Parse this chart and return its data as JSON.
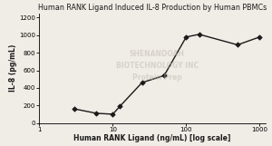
{
  "title": "Human RANK Ligand Induced IL-8 Production by Human PBMCs",
  "xlabel": "Human RANK Ligand (ng/mL) [log scale]",
  "ylabel": "IL-8 (pg/mL)",
  "x_data": [
    3,
    6,
    10,
    12.5,
    25,
    50,
    100,
    150,
    500,
    1000
  ],
  "y_data": [
    160,
    110,
    100,
    190,
    460,
    540,
    980,
    1010,
    890,
    980
  ],
  "xlim_log": [
    1.5,
    1200
  ],
  "ylim": [
    0,
    1250
  ],
  "yticks": [
    0,
    200,
    400,
    600,
    800,
    1000,
    1200
  ],
  "xticks": [
    1,
    10,
    100,
    1000
  ],
  "line_color": "#1a1a1a",
  "marker": "D",
  "marker_size": 2.8,
  "line_width": 1.0,
  "title_fontsize": 5.8,
  "axis_label_fontsize": 5.5,
  "tick_fontsize": 5.0,
  "background_color": "#f0ece6",
  "watermark_lines": [
    "SHENANDOAH",
    "BIOTECHNOLOGY INC",
    "Protein Prep"
  ],
  "watermark_color": "#c0b8b0",
  "watermark_alpha": 0.5
}
